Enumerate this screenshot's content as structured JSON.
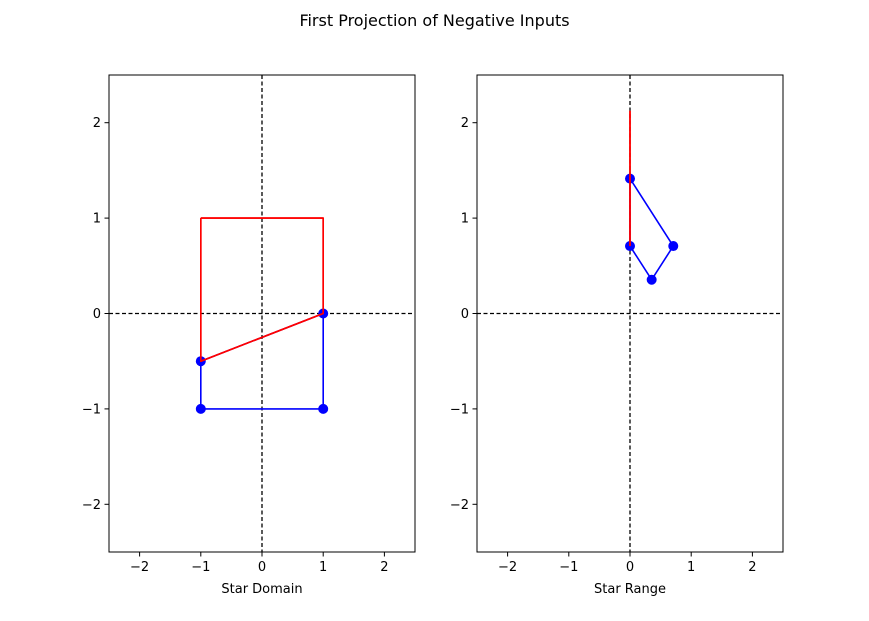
{
  "figure": {
    "suptitle": "First Projection of Negative Inputs"
  },
  "chart_data": [
    {
      "type": "line",
      "title": "",
      "xlabel": "Star Domain",
      "ylabel": "",
      "xlim": [
        -2.5,
        2.5
      ],
      "ylim": [
        -2.5,
        2.5
      ],
      "xticks": [
        -2,
        -1,
        0,
        1,
        2
      ],
      "yticks": [
        -2,
        -1,
        0,
        1,
        2
      ],
      "grid": false,
      "reference_lines": {
        "x": 0,
        "y": 0,
        "style": "dashed",
        "color": "#000000"
      },
      "series": [
        {
          "color": "#0000ff",
          "marker": "circle",
          "closed": true,
          "points": [
            [
              -1,
              -1
            ],
            [
              1,
              -1
            ],
            [
              1,
              0
            ],
            [
              -1,
              -0.5
            ]
          ]
        },
        {
          "color": "#ff0000",
          "marker": "none",
          "closed": true,
          "points": [
            [
              -1,
              1
            ],
            [
              1,
              1
            ],
            [
              1,
              0
            ],
            [
              -1,
              -0.5
            ]
          ]
        }
      ]
    },
    {
      "type": "line",
      "title": "",
      "xlabel": "Star Range",
      "ylabel": "",
      "xlim": [
        -2.5,
        2.5
      ],
      "ylim": [
        -2.5,
        2.5
      ],
      "xticks": [
        -2,
        -1,
        0,
        1,
        2
      ],
      "yticks": [
        -2,
        -1,
        0,
        1,
        2
      ],
      "grid": false,
      "reference_lines": {
        "x": 0,
        "y": 0,
        "style": "dashed",
        "color": "#000000"
      },
      "series": [
        {
          "color": "#0000ff",
          "marker": "circle",
          "closed": true,
          "points": [
            [
              0,
              0.707
            ],
            [
              0.354,
              0.354
            ],
            [
              0.707,
              0.707
            ],
            [
              0,
              1.414
            ]
          ]
        },
        {
          "color": "#ff0000",
          "marker": "none",
          "closed": true,
          "points": [
            [
              0,
              0.707
            ],
            [
              0,
              1.414
            ],
            [
              0,
              2.12
            ]
          ]
        }
      ]
    }
  ]
}
